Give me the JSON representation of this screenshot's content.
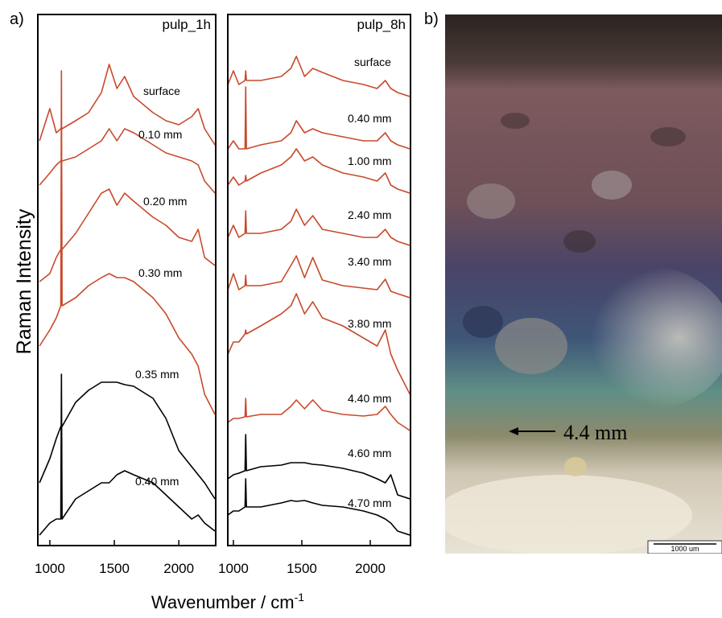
{
  "panel_labels": [
    "a)",
    "b)"
  ],
  "y_label": "Raman Intensity",
  "x_label": "Wavenumber / cm",
  "x_label_superscript": "-1",
  "photo": {
    "annotation": "4.4 mm",
    "scale_bar": "1000 um"
  },
  "chart_data": [
    {
      "type": "line",
      "title": "pulp_1h",
      "x": [
        920,
        1000,
        1050,
        1085,
        1090,
        1095,
        1200,
        1300,
        1400,
        1460,
        1520,
        1580,
        1650,
        1800,
        1900,
        2000,
        2100,
        2150,
        2200,
        2280
      ],
      "xlim": [
        907,
        2286
      ],
      "xticks": [
        1000,
        1500,
        2000
      ],
      "ylim": [
        0,
        660
      ],
      "series": [
        {
          "name": "surface",
          "color": "#c9492b",
          "values": [
            503,
            543,
            513,
            518,
            520,
            518,
            528,
            538,
            563,
            598,
            568,
            583,
            558,
            538,
            528,
            523,
            533,
            543,
            518,
            498
          ]
        },
        {
          "name": "0.10 mm",
          "color": "#c9492b",
          "values": [
            448,
            463,
            473,
            478,
            478,
            478,
            483,
            493,
            503,
            518,
            503,
            518,
            513,
            498,
            488,
            483,
            478,
            473,
            453,
            438
          ]
        },
        {
          "name": "0.20 mm",
          "color": "#c9492b",
          "values": [
            328,
            338,
            358,
            368,
            368,
            368,
            388,
            413,
            438,
            443,
            423,
            438,
            428,
            408,
            398,
            383,
            378,
            393,
            358,
            348
          ]
        },
        {
          "name": "0.30 mm",
          "color": "#c9492b",
          "values": [
            248,
            268,
            283,
            298,
            590,
            298,
            308,
            323,
            333,
            338,
            333,
            333,
            328,
            308,
            288,
            258,
            238,
            223,
            188,
            163
          ]
        },
        {
          "name": "0.35 mm",
          "color": "#000000",
          "values": [
            78,
            108,
            133,
            148,
            148,
            148,
            178,
            193,
            203,
            203,
            203,
            200,
            198,
            183,
            158,
            118,
            98,
            88,
            78,
            58
          ]
        },
        {
          "name": "0.40 mm",
          "color": "#000000",
          "values": [
            13,
            28,
            33,
            33,
            213,
            33,
            58,
            68,
            78,
            78,
            88,
            93,
            88,
            78,
            63,
            48,
            33,
            38,
            28,
            18
          ]
        }
      ]
    },
    {
      "type": "line",
      "title": "pulp_8h",
      "x": [
        960,
        1000,
        1040,
        1085,
        1090,
        1095,
        1200,
        1350,
        1420,
        1460,
        1520,
        1580,
        1650,
        1800,
        1950,
        2050,
        2110,
        2150,
        2200,
        2290
      ],
      "xlim": [
        959,
        2294
      ],
      "xticks": [
        1000,
        1500,
        2000
      ],
      "ylim": [
        0,
        660
      ],
      "series": [
        {
          "name": "surface",
          "color": "#c9492b",
          "values": [
            573,
            590,
            573,
            578,
            590,
            578,
            578,
            583,
            593,
            608,
            583,
            593,
            588,
            578,
            573,
            568,
            578,
            568,
            563,
            558
          ]
        },
        {
          "name": "0.40 mm",
          "color": "#c9492b",
          "values": [
            493,
            503,
            493,
            493,
            570,
            493,
            498,
            503,
            513,
            528,
            513,
            518,
            513,
            508,
            503,
            503,
            513,
            503,
            498,
            493
          ]
        },
        {
          "name": "1.00 mm",
          "color": "#c9492b",
          "values": [
            448,
            458,
            448,
            453,
            460,
            453,
            463,
            473,
            483,
            493,
            478,
            483,
            473,
            463,
            458,
            453,
            463,
            448,
            443,
            438
          ]
        },
        {
          "name": "2.40 mm",
          "color": "#c9492b",
          "values": [
            383,
            398,
            383,
            388,
            416,
            388,
            388,
            393,
            403,
            418,
            398,
            410,
            393,
            388,
            383,
            383,
            393,
            383,
            378,
            373
          ]
        },
        {
          "name": "3.40 mm",
          "color": "#c9492b",
          "values": [
            318,
            338,
            318,
            323,
            336,
            323,
            323,
            328,
            348,
            360,
            333,
            358,
            330,
            323,
            320,
            318,
            331,
            316,
            313,
            308
          ]
        },
        {
          "name": "3.80 mm",
          "color": "#c9492b",
          "values": [
            238,
            253,
            253,
            263,
            268,
            263,
            273,
            288,
            298,
            313,
            288,
            303,
            283,
            273,
            258,
            248,
            268,
            238,
            218,
            188
          ]
        },
        {
          "name": "4.40 mm",
          "color": "#c9492b",
          "values": [
            153,
            158,
            158,
            160,
            183,
            160,
            163,
            163,
            173,
            181,
            170,
            181,
            168,
            163,
            161,
            163,
            173,
            163,
            153,
            143
          ]
        },
        {
          "name": "4.60 mm",
          "color": "#000000",
          "values": [
            83,
            88,
            90,
            93,
            138,
            93,
            98,
            100,
            103,
            103,
            103,
            101,
            100,
            96,
            90,
            83,
            78,
            88,
            63,
            58
          ]
        },
        {
          "name": "4.70 mm",
          "color": "#000000",
          "values": [
            38,
            43,
            43,
            48,
            83,
            48,
            48,
            53,
            56,
            55,
            56,
            53,
            50,
            48,
            43,
            38,
            33,
            28,
            18,
            13
          ]
        }
      ]
    }
  ]
}
